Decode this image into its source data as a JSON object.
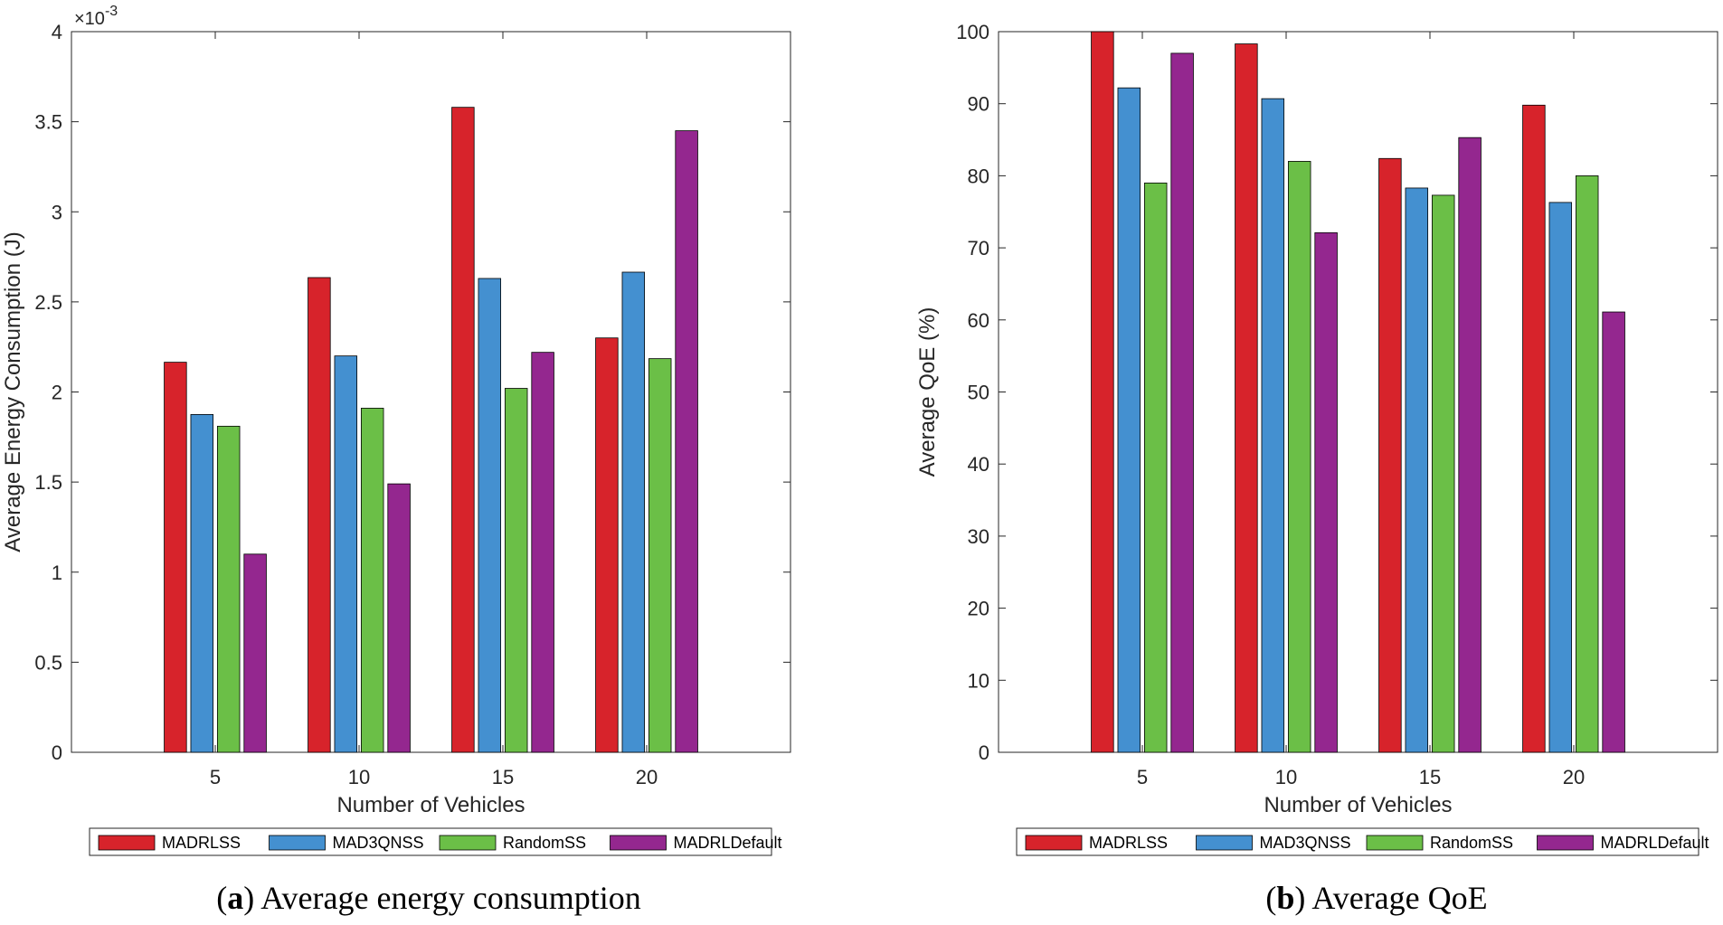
{
  "chart_data": [
    {
      "type": "bar",
      "id": "a",
      "categories": [
        "5",
        "10",
        "15",
        "20"
      ],
      "series": [
        {
          "name": "MADRLSS",
          "color": "#d7232b",
          "values": [
            2.165,
            2.635,
            3.58,
            2.3
          ]
        },
        {
          "name": "MAD3QNSS",
          "color": "#4490d0",
          "values": [
            1.875,
            2.2,
            2.63,
            2.665
          ]
        },
        {
          "name": "RandomSS",
          "color": "#6bbf47",
          "values": [
            1.81,
            1.91,
            2.02,
            2.185
          ]
        },
        {
          "name": "MADRLDefault",
          "color": "#94278f",
          "values": [
            1.1,
            1.49,
            2.22,
            3.45
          ]
        }
      ],
      "xlabel": "Number of Vehicles",
      "ylabel": "Average Energy Consumption (J)",
      "ylim": [
        0,
        4
      ],
      "xlim": [
        0,
        5
      ],
      "yticks": [
        "0",
        "0.5",
        "1",
        "1.5",
        "2",
        "2.5",
        "3",
        "3.5",
        "4"
      ],
      "exponent_prefix": "×10",
      "exponent_power": "-3",
      "legend_position": "bottom-outside",
      "caption_letter": "(a)",
      "caption_text": " Average energy consumption"
    },
    {
      "type": "bar",
      "id": "b",
      "categories": [
        "5",
        "10",
        "15",
        "20"
      ],
      "series": [
        {
          "name": "MADRLSS",
          "color": "#d7232b",
          "values": [
            100,
            98.3,
            82.4,
            89.8
          ]
        },
        {
          "name": "MAD3QNSS",
          "color": "#4490d0",
          "values": [
            92.2,
            90.7,
            78.3,
            76.3
          ]
        },
        {
          "name": "RandomSS",
          "color": "#6bbf47",
          "values": [
            79.0,
            82.0,
            77.3,
            80.0
          ]
        },
        {
          "name": "MADRLDefault",
          "color": "#94278f",
          "values": [
            97.0,
            72.1,
            85.3,
            61.1
          ]
        }
      ],
      "xlabel": "Number of Vehicles",
      "ylabel": "Average QoE (%)",
      "ylim": [
        0,
        100
      ],
      "xlim": [
        0,
        5
      ],
      "yticks": [
        "0",
        "10",
        "20",
        "30",
        "40",
        "50",
        "60",
        "70",
        "80",
        "90",
        "100"
      ],
      "legend_position": "bottom-outside",
      "caption_letter": "(b)",
      "caption_text": " Average QoE"
    }
  ]
}
